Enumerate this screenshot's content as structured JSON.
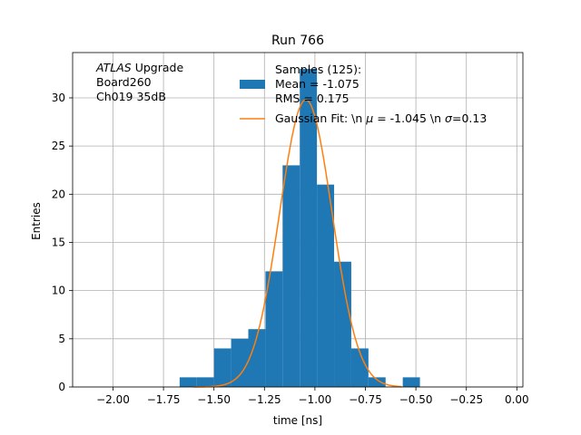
{
  "chart_data": {
    "type": "bar",
    "title": "Run 766",
    "xlabel": "time [ns]",
    "ylabel": "Entries",
    "xlim": [
      -2.2,
      0.03
    ],
    "ylim": [
      0,
      34.7
    ],
    "grid": true,
    "x_ticks": [
      -2.0,
      -1.75,
      -1.5,
      -1.25,
      -1.0,
      -0.75,
      -0.5,
      -0.25,
      0.0
    ],
    "x_tick_labels": [
      "−2.00",
      "−1.75",
      "−1.50",
      "−1.25",
      "−1.00",
      "−0.75",
      "−0.50",
      "−0.25",
      "0.00"
    ],
    "y_ticks": [
      0,
      5,
      10,
      15,
      20,
      25,
      30
    ],
    "y_tick_labels": [
      "0",
      "5",
      "10",
      "15",
      "20",
      "25",
      "30"
    ],
    "annotation": {
      "lines": [
        {
          "italic": "ATLAS",
          "rest": " Upgrade"
        },
        {
          "italic": "",
          "rest": " Board260"
        },
        {
          "italic": "",
          "rest": " Ch019 35dB"
        }
      ]
    },
    "histogram": {
      "name_lines": [
        "Samples (125):",
        " Mean = -1.075",
        " RMS = 0.175"
      ],
      "color": "#1f77b4",
      "bins": [
        {
          "x0": -1.67,
          "x1": -1.585,
          "value": 1
        },
        {
          "x0": -1.585,
          "x1": -1.5,
          "value": 1
        },
        {
          "x0": -1.5,
          "x1": -1.415,
          "value": 4
        },
        {
          "x0": -1.415,
          "x1": -1.33,
          "value": 5
        },
        {
          "x0": -1.33,
          "x1": -1.245,
          "value": 6
        },
        {
          "x0": -1.245,
          "x1": -1.16,
          "value": 12
        },
        {
          "x0": -1.16,
          "x1": -1.075,
          "value": 23
        },
        {
          "x0": -1.075,
          "x1": -0.99,
          "value": 33
        },
        {
          "x0": -0.99,
          "x1": -0.905,
          "value": 21
        },
        {
          "x0": -0.905,
          "x1": -0.82,
          "value": 13
        },
        {
          "x0": -0.82,
          "x1": -0.735,
          "value": 4
        },
        {
          "x0": -0.735,
          "x1": -0.65,
          "value": 1
        },
        {
          "x0": -0.65,
          "x1": -0.565,
          "value": 0
        },
        {
          "x0": -0.565,
          "x1": -0.48,
          "value": 1
        }
      ]
    },
    "gaussian_fit": {
      "name_prefix": "Gaussian Fit: \\n ",
      "mu_symbol": "μ",
      "mu_text": " = -1.045 \\n ",
      "sigma_symbol": "σ",
      "sigma_text": "=0.13",
      "mu": -1.045,
      "sigma": 0.13,
      "amplitude": 29.8,
      "x_range": [
        -1.6,
        -0.57
      ],
      "color": "#ff7f0e"
    },
    "legend_position": "upper-center"
  }
}
